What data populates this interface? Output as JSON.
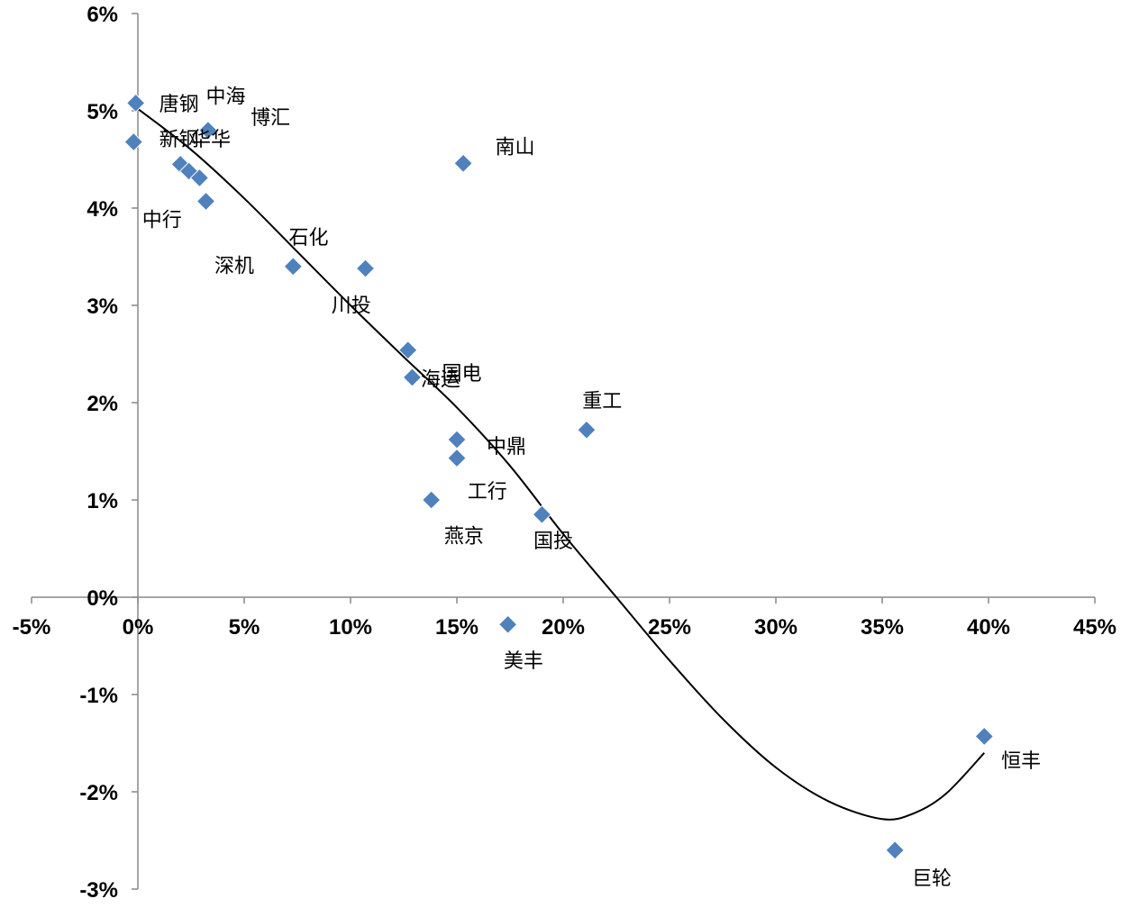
{
  "chart_data": {
    "type": "scatter",
    "title": "",
    "xlabel": "",
    "ylabel": "",
    "xlim": [
      -5,
      45
    ],
    "ylim": [
      -3,
      6
    ],
    "x_ticks": [
      -5,
      0,
      5,
      10,
      15,
      20,
      25,
      30,
      35,
      40,
      45
    ],
    "y_ticks": [
      -3,
      -2,
      -1,
      0,
      1,
      2,
      3,
      4,
      5,
      6
    ],
    "x_tick_labels": [
      "-5%",
      "0%",
      "5%",
      "10%",
      "15%",
      "20%",
      "25%",
      "30%",
      "35%",
      "40%",
      "45%"
    ],
    "y_tick_labels": [
      "-3%",
      "-2%",
      "-1%",
      "0%",
      "1%",
      "2%",
      "3%",
      "4%",
      "5%",
      "6%"
    ],
    "unit": "%",
    "grid": false,
    "legend": "none",
    "marker": "diamond",
    "marker_color": "#4F81BD",
    "trendline_color": "#000000",
    "points": [
      {
        "x": -0.1,
        "y": 5.08
      },
      {
        "x": -0.2,
        "y": 4.68
      },
      {
        "x": 2.0,
        "y": 4.45
      },
      {
        "x": 2.4,
        "y": 4.38
      },
      {
        "x": 2.9,
        "y": 4.31
      },
      {
        "x": 3.3,
        "y": 4.8
      },
      {
        "x": 3.2,
        "y": 4.07
      },
      {
        "x": 7.3,
        "y": 3.4
      },
      {
        "x": 10.7,
        "y": 3.38
      },
      {
        "x": 12.7,
        "y": 2.54
      },
      {
        "x": 12.9,
        "y": 2.26
      },
      {
        "x": 15.3,
        "y": 4.46
      },
      {
        "x": 15.0,
        "y": 1.62
      },
      {
        "x": 15.0,
        "y": 1.43
      },
      {
        "x": 13.8,
        "y": 1.0
      },
      {
        "x": 19.0,
        "y": 0.85
      },
      {
        "x": 21.1,
        "y": 1.72
      },
      {
        "x": 17.4,
        "y": -0.28
      },
      {
        "x": 39.8,
        "y": -1.43
      },
      {
        "x": 35.6,
        "y": -2.6
      }
    ],
    "labels": [
      {
        "text": "唐钢",
        "x": 1.0,
        "y": 5.0
      },
      {
        "text": "中海",
        "x": 3.2,
        "y": 5.08
      },
      {
        "text": "博汇",
        "x": 5.3,
        "y": 4.86
      },
      {
        "text": "新钢",
        "x": 1.0,
        "y": 4.64
      },
      {
        "text": "华华",
        "x": 2.5,
        "y": 4.64
      },
      {
        "text": "南山",
        "x": 16.8,
        "y": 4.56
      },
      {
        "text": "中行",
        "x": 0.2,
        "y": 3.81
      },
      {
        "text": "石化",
        "x": 7.1,
        "y": 3.63
      },
      {
        "text": "深机",
        "x": 3.6,
        "y": 3.34
      },
      {
        "text": "川投",
        "x": 9.1,
        "y": 2.93
      },
      {
        "text": "国电",
        "x": 14.3,
        "y": 2.23
      },
      {
        "text": "海运",
        "x": 13.3,
        "y": 2.17
      },
      {
        "text": "重工",
        "x": 20.9,
        "y": 1.95
      },
      {
        "text": "中鼎",
        "x": 16.4,
        "y": 1.48
      },
      {
        "text": "工行",
        "x": 15.5,
        "y": 1.02
      },
      {
        "text": "燕京",
        "x": 14.4,
        "y": 0.56
      },
      {
        "text": "国投",
        "x": 18.6,
        "y": 0.51
      },
      {
        "text": "美丰",
        "x": 17.2,
        "y": -0.72
      },
      {
        "text": "恒丰",
        "x": 40.6,
        "y": -1.75
      },
      {
        "text": "巨轮",
        "x": 36.4,
        "y": -2.96
      }
    ],
    "trendline": {
      "type": "polynomial",
      "x": [
        0,
        2.5,
        5,
        7.5,
        10,
        12.5,
        15,
        17.5,
        20,
        22.5,
        25,
        27.5,
        30,
        32.5,
        35,
        36.5,
        38,
        39.8
      ],
      "y": [
        5.02,
        4.6,
        4.1,
        3.55,
        3.0,
        2.47,
        1.95,
        1.35,
        0.65,
        0.0,
        -0.65,
        -1.25,
        -1.75,
        -2.1,
        -2.28,
        -2.22,
        -2.02,
        -1.6
      ]
    }
  }
}
